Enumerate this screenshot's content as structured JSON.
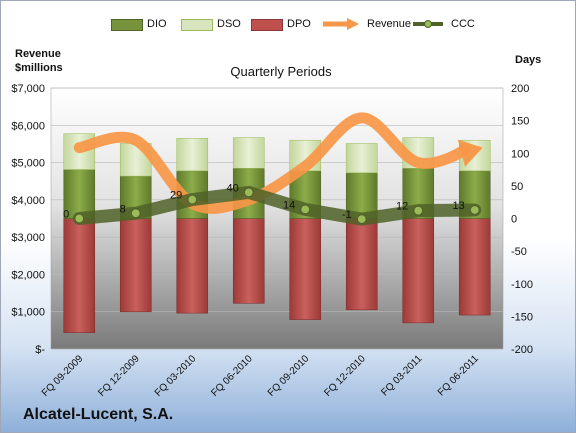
{
  "legend": {
    "dio": "DIO",
    "dso": "DSO",
    "dpo": "DPO",
    "revenue": "Revenue",
    "ccc": "CCC"
  },
  "left_axis_title_line1": "Revenue",
  "left_axis_title_line2": "$millions",
  "right_axis_title": "Days",
  "plot_title": "Quarterly Periods",
  "company": "Alcatel-Lucent, S.A.",
  "colors": {
    "dio": "#77933c",
    "dso": "#d7e4bd",
    "dpo": "#c0504d",
    "revenue": "#f79646",
    "ccc": "#4f6228"
  },
  "chart_data": {
    "type": "bar",
    "categories": [
      "FQ 09-2009",
      "FQ 12-2009",
      "FQ 03-2010",
      "FQ 06-2010",
      "FQ 09-2010",
      "FQ 12-2010",
      "FQ 03-2011",
      "FQ 06-2011"
    ],
    "title": "Quarterly Periods",
    "left_axis": {
      "label": "Revenue $millions",
      "range": [
        0,
        7000
      ],
      "ticks": [
        0,
        1000,
        2000,
        3000,
        4000,
        5000,
        6000,
        7000
      ],
      "tick_labels": [
        "$-",
        "$1,000",
        "$2,000",
        "$3,000",
        "$4,000",
        "$5,000",
        "$6,000",
        "$7,000"
      ]
    },
    "right_axis": {
      "label": "Days",
      "range": [
        -200,
        200
      ],
      "ticks": [
        -200,
        -150,
        -100,
        -50,
        0,
        50,
        100,
        150,
        200
      ],
      "tick_labels": [
        "-200",
        "-150",
        "-100",
        "-50",
        "0",
        "50",
        "100",
        "150",
        "200"
      ]
    },
    "series": [
      {
        "name": "DIO",
        "kind": "stacked-bar",
        "axis": "right",
        "values": [
          75,
          65,
          73,
          77,
          73,
          70,
          77,
          73
        ]
      },
      {
        "name": "DSO",
        "kind": "stacked-bar",
        "axis": "right",
        "values": [
          55,
          50,
          50,
          47,
          47,
          45,
          47,
          47
        ]
      },
      {
        "name": "DPO",
        "kind": "negative-bar",
        "axis": "right",
        "values": [
          -175,
          -143,
          -145,
          -130,
          -155,
          -140,
          -160,
          -148
        ]
      },
      {
        "name": "Revenue",
        "kind": "arrow-line",
        "axis": "left",
        "values": [
          5400,
          5600,
          3900,
          4000,
          4900,
          6200,
          5000,
          5400
        ]
      },
      {
        "name": "CCC",
        "kind": "line-markers",
        "axis": "right",
        "values": [
          0,
          8,
          29,
          40,
          14,
          -1,
          12,
          13
        ],
        "labels": [
          "0",
          "8",
          "29",
          "40",
          "14",
          "-1",
          "12",
          "13"
        ]
      }
    ],
    "grid": true,
    "legend_position": "top"
  }
}
